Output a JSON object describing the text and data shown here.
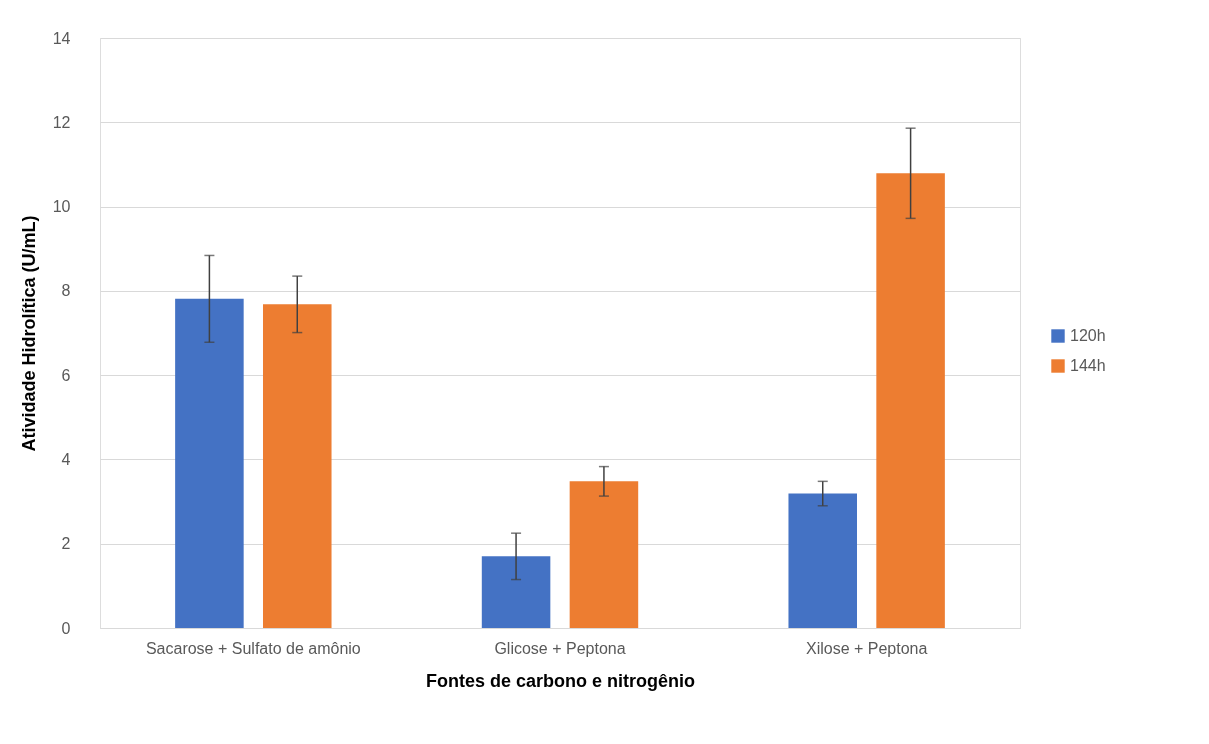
{
  "chart_data": {
    "type": "bar",
    "xlabel": "Fontes de carbono e nitrogênio",
    "ylabel": "Atividade Hidrolítica (U/mL)",
    "categories": [
      "Sacarose + Sulfato de amônio",
      "Glicose + Peptona",
      "Xilose + Peptona"
    ],
    "series": [
      {
        "name": "120h",
        "color": "#4472c4",
        "values": [
          7.81,
          1.7,
          3.19
        ],
        "errors": [
          1.03,
          0.55,
          0.29
        ]
      },
      {
        "name": "144h",
        "color": "#ed7d31",
        "values": [
          7.68,
          3.48,
          10.79
        ],
        "errors": [
          0.67,
          0.35,
          1.07
        ]
      }
    ],
    "ylim": [
      0,
      14
    ],
    "yticks": [
      0,
      2,
      4,
      6,
      8,
      10,
      12,
      14
    ],
    "grid": "y",
    "legend": "right"
  }
}
